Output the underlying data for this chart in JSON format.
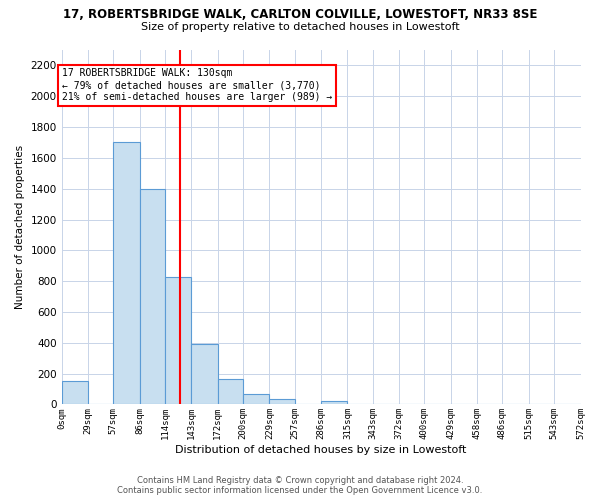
{
  "title1": "17, ROBERTSBRIDGE WALK, CARLTON COLVILLE, LOWESTOFT, NR33 8SE",
  "title2": "Size of property relative to detached houses in Lowestoft",
  "xlabel": "Distribution of detached houses by size in Lowestoft",
  "ylabel": "Number of detached properties",
  "bin_edges": [
    0,
    29,
    57,
    86,
    114,
    143,
    172,
    200,
    229,
    257,
    286,
    315,
    343,
    372,
    400,
    429,
    458,
    486,
    515,
    543,
    572
  ],
  "bar_heights": [
    155,
    0,
    1700,
    1400,
    830,
    390,
    165,
    65,
    35,
    0,
    25,
    0,
    0,
    0,
    0,
    0,
    0,
    0,
    0,
    0
  ],
  "bar_color": "#c8dff0",
  "bar_edge_color": "#5b9bd5",
  "vline_x": 130,
  "vline_color": "red",
  "ylim": [
    0,
    2300
  ],
  "yticks": [
    0,
    200,
    400,
    600,
    800,
    1000,
    1200,
    1400,
    1600,
    1800,
    2000,
    2200
  ],
  "tick_labels": [
    "0sqm",
    "29sqm",
    "57sqm",
    "86sqm",
    "114sqm",
    "143sqm",
    "172sqm",
    "200sqm",
    "229sqm",
    "257sqm",
    "286sqm",
    "315sqm",
    "343sqm",
    "372sqm",
    "400sqm",
    "429sqm",
    "458sqm",
    "486sqm",
    "515sqm",
    "543sqm",
    "572sqm"
  ],
  "annotation_title": "17 ROBERTSBRIDGE WALK: 130sqm",
  "annotation_line1": "← 79% of detached houses are smaller (3,770)",
  "annotation_line2": "21% of semi-detached houses are larger (989) →",
  "footnote1": "Contains HM Land Registry data © Crown copyright and database right 2024.",
  "footnote2": "Contains public sector information licensed under the Open Government Licence v3.0.",
  "background_color": "#ffffff",
  "grid_color": "#c8d4e8"
}
